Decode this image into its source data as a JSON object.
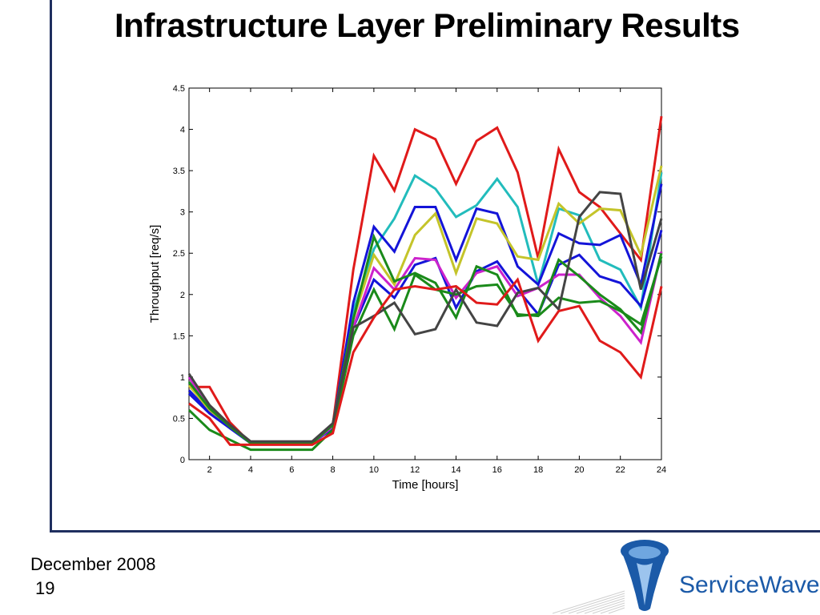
{
  "slide": {
    "title": "Infrastructure Layer Preliminary Results",
    "date": "December 2008",
    "page": "19",
    "logo_text": "ServiceWave"
  },
  "colors": {
    "frame": "#1f2f5f",
    "logo_blue": "#1b5aa8"
  },
  "chart_data": {
    "type": "line",
    "xlabel": "Time [hours]",
    "ylabel": "Throughput [req/s]",
    "xlim": [
      1,
      24
    ],
    "ylim": [
      0,
      4.5
    ],
    "xticks": [
      2,
      4,
      6,
      8,
      10,
      12,
      14,
      16,
      18,
      20,
      22,
      24
    ],
    "yticks": [
      0,
      0.5,
      1,
      1.5,
      2,
      2.5,
      3,
      3.5,
      4,
      4.5
    ],
    "grid": false,
    "x": [
      1,
      2,
      3,
      4,
      5,
      6,
      7,
      8,
      9,
      10,
      11,
      12,
      13,
      14,
      15,
      16,
      17,
      18,
      19,
      20,
      21,
      22,
      23,
      24
    ],
    "series": [
      {
        "color": "#e01a1a",
        "values": [
          0.88,
          0.88,
          0.45,
          0.2,
          0.2,
          0.2,
          0.2,
          0.42,
          2.3,
          3.68,
          3.26,
          4.0,
          3.88,
          3.34,
          3.86,
          4.02,
          3.48,
          2.44,
          3.76,
          3.24,
          3.06,
          2.74,
          2.42,
          4.16
        ]
      },
      {
        "color": "#22bcbc",
        "values": [
          0.94,
          0.6,
          0.4,
          0.2,
          0.2,
          0.2,
          0.2,
          0.42,
          1.8,
          2.55,
          2.92,
          3.44,
          3.28,
          2.94,
          3.08,
          3.4,
          3.06,
          2.12,
          3.04,
          2.96,
          2.42,
          2.3,
          1.84,
          3.48
        ]
      },
      {
        "color": "#1414d8",
        "values": [
          0.84,
          0.58,
          0.38,
          0.2,
          0.2,
          0.2,
          0.2,
          0.4,
          1.9,
          2.82,
          2.52,
          3.06,
          3.06,
          2.42,
          3.04,
          2.98,
          2.34,
          2.12,
          2.74,
          2.62,
          2.6,
          2.72,
          2.12,
          3.34
        ]
      },
      {
        "color": "#c4c42a",
        "values": [
          0.9,
          0.6,
          0.4,
          0.2,
          0.2,
          0.2,
          0.2,
          0.42,
          1.7,
          2.48,
          2.12,
          2.72,
          2.98,
          2.26,
          2.92,
          2.86,
          2.46,
          2.42,
          3.1,
          2.86,
          3.04,
          3.02,
          2.48,
          3.56
        ]
      },
      {
        "color": "#1414d8",
        "values": [
          0.8,
          0.56,
          0.38,
          0.2,
          0.2,
          0.2,
          0.2,
          0.38,
          1.6,
          2.18,
          1.96,
          2.36,
          2.44,
          1.84,
          2.28,
          2.4,
          2.06,
          1.76,
          2.36,
          2.48,
          2.22,
          2.14,
          1.86,
          2.78
        ]
      },
      {
        "color": "#cc22cc",
        "values": [
          1.0,
          0.62,
          0.4,
          0.2,
          0.2,
          0.2,
          0.2,
          0.4,
          1.6,
          2.32,
          2.06,
          2.44,
          2.42,
          1.96,
          2.26,
          2.34,
          1.98,
          2.08,
          2.24,
          2.24,
          1.96,
          1.74,
          1.42,
          2.52
        ]
      },
      {
        "color": "#1a8a1a",
        "values": [
          0.94,
          0.62,
          0.4,
          0.2,
          0.2,
          0.2,
          0.2,
          0.42,
          1.7,
          2.7,
          2.16,
          2.26,
          2.14,
          1.72,
          2.34,
          2.24,
          1.74,
          1.76,
          2.42,
          2.22,
          2.0,
          1.82,
          1.54,
          2.5
        ]
      },
      {
        "color": "#1a8a1a",
        "values": [
          0.6,
          0.36,
          0.24,
          0.12,
          0.12,
          0.12,
          0.12,
          0.36,
          1.5,
          2.06,
          1.58,
          2.24,
          2.06,
          2.0,
          2.1,
          2.12,
          1.76,
          1.74,
          1.96,
          1.9,
          1.92,
          1.8,
          1.64,
          2.46
        ]
      },
      {
        "color": "#444444",
        "values": [
          1.04,
          0.66,
          0.42,
          0.22,
          0.22,
          0.22,
          0.22,
          0.44,
          1.6,
          1.74,
          1.9,
          1.52,
          1.58,
          2.06,
          1.66,
          1.62,
          2.02,
          2.08,
          1.82,
          2.94,
          3.24,
          3.22,
          2.06,
          2.92
        ]
      },
      {
        "color": "#e01a1a",
        "values": [
          0.68,
          0.5,
          0.18,
          0.18,
          0.18,
          0.18,
          0.18,
          0.32,
          1.3,
          1.72,
          2.06,
          2.1,
          2.06,
          2.1,
          1.9,
          1.88,
          2.18,
          1.44,
          1.8,
          1.86,
          1.44,
          1.3,
          1.0,
          2.1
        ]
      }
    ]
  }
}
